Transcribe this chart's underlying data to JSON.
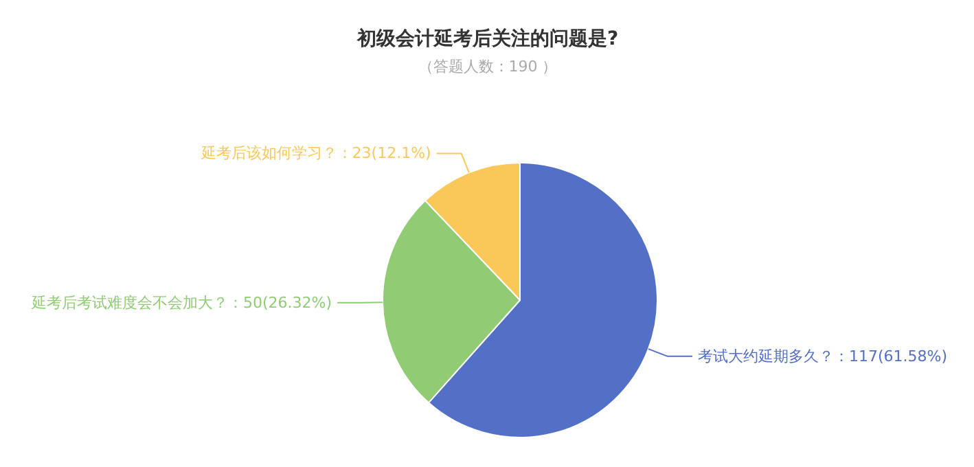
{
  "chart_data": {
    "type": "pie",
    "title": "初级会计延考后关注的问题是?",
    "subtitle": "（答题人数：190 ）",
    "categories": [
      "考试大约延期多久？",
      "延考后考试难度会不会加大？",
      "延考后该如何学习？"
    ],
    "values": [
      117,
      50,
      23
    ],
    "colors": [
      "#5470c6",
      "#91cc75",
      "#fac858"
    ],
    "value_labels": [
      "：117(61.58%)",
      "：50(26.32%)",
      "：23(12.1%)"
    ]
  }
}
